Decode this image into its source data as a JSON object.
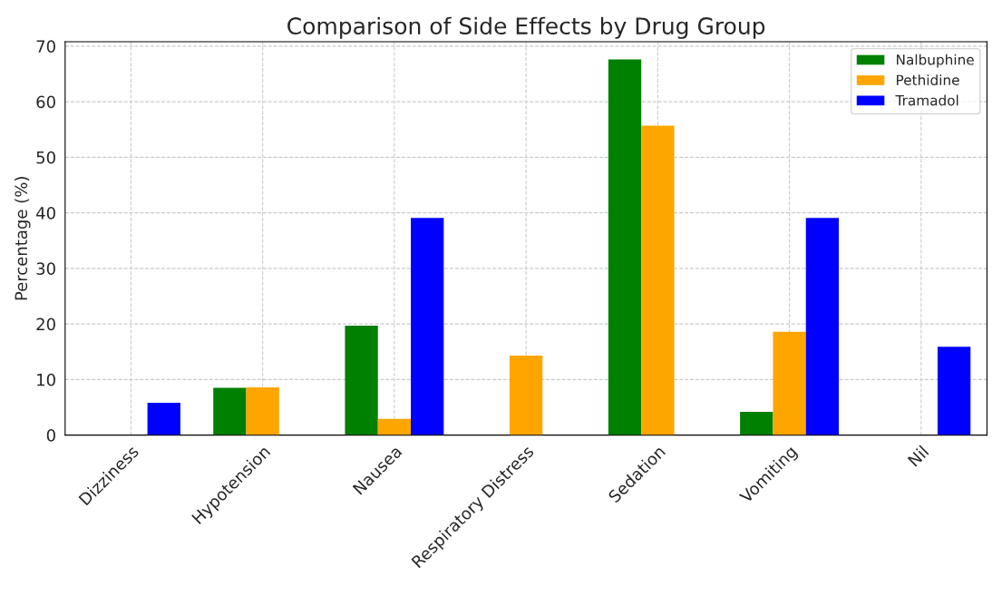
{
  "chart_data": {
    "type": "bar",
    "title": "Comparison of Side Effects by Drug Group",
    "ylabel": "Percentage (%)",
    "categories": [
      "Dizziness",
      "Hypotension",
      "Nausea",
      "Respiratory Distress",
      "Sedation",
      "Vomiting",
      "Nil"
    ],
    "series": [
      {
        "name": "Nalbuphine",
        "color": "#008000",
        "values": [
          null,
          8.5,
          19.7,
          null,
          67.6,
          4.2,
          null
        ]
      },
      {
        "name": "Pethidine",
        "color": "#ffa500",
        "values": [
          null,
          8.6,
          2.9,
          14.3,
          55.7,
          18.6,
          null
        ]
      },
      {
        "name": "Tramadol",
        "color": "#0000ff",
        "values": [
          5.8,
          null,
          39.1,
          null,
          null,
          39.1,
          15.9
        ]
      }
    ],
    "ylim": [
      0,
      70.8
    ],
    "yticks": [
      0,
      10,
      20,
      30,
      40,
      50,
      60,
      70
    ],
    "grid": true,
    "legend": "top right"
  }
}
